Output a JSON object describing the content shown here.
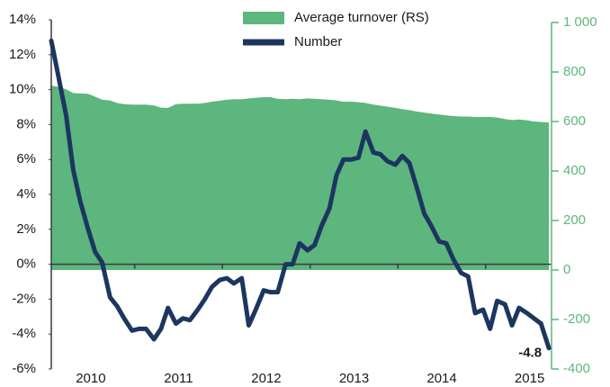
{
  "chart_data": {
    "type": "line-area",
    "x": [
      2010.05,
      2010.13,
      2010.22,
      2010.3,
      2010.38,
      2010.47,
      2010.55,
      2010.63,
      2010.72,
      2010.8,
      2010.88,
      2010.97,
      2011.05,
      2011.13,
      2011.22,
      2011.3,
      2011.38,
      2011.47,
      2011.55,
      2011.63,
      2011.72,
      2011.8,
      2011.88,
      2011.97,
      2012.05,
      2012.13,
      2012.22,
      2012.3,
      2012.38,
      2012.47,
      2012.55,
      2012.63,
      2012.72,
      2012.8,
      2012.88,
      2012.97,
      2013.05,
      2013.13,
      2013.22,
      2013.3,
      2013.38,
      2013.47,
      2013.55,
      2013.63,
      2013.72,
      2013.8,
      2013.88,
      2013.97,
      2014.05,
      2014.13,
      2014.22,
      2014.3,
      2014.38,
      2014.47,
      2014.55,
      2014.63,
      2014.72,
      2014.8,
      2014.88,
      2014.97,
      2015.05,
      2015.13,
      2015.22,
      2015.3,
      2015.38,
      2015.47,
      2015.55,
      2015.63,
      2015.72
    ],
    "xlim": [
      2010.05,
      2015.75
    ],
    "xticks": [
      {
        "value": 2010.5,
        "label": "2010"
      },
      {
        "value": 2011.5,
        "label": "2011"
      },
      {
        "value": 2012.5,
        "label": "2012"
      },
      {
        "value": 2013.5,
        "label": "2013"
      },
      {
        "value": 2014.5,
        "label": "2014"
      },
      {
        "value": 2015.5,
        "label": "2015"
      }
    ],
    "ylim": [
      -6,
      14
    ],
    "yticks": [
      {
        "value": -6,
        "label": "-6%"
      },
      {
        "value": -4,
        "label": "-4%"
      },
      {
        "value": -2,
        "label": "-2%"
      },
      {
        "value": 0,
        "label": "0%"
      },
      {
        "value": 2,
        "label": "2%"
      },
      {
        "value": 4,
        "label": "4%"
      },
      {
        "value": 6,
        "label": "6%"
      },
      {
        "value": 8,
        "label": "8%"
      },
      {
        "value": 10,
        "label": "10%"
      },
      {
        "value": 12,
        "label": "12%"
      },
      {
        "value": 14,
        "label": "14%"
      }
    ],
    "y2lim": [
      -400,
      1000
    ],
    "y2ticks": [
      -400,
      -200,
      0,
      200,
      400,
      600,
      800,
      {
        "value": 1000,
        "label": "1 000"
      }
    ],
    "legend": "top",
    "series": [
      {
        "name": "Average turnover (RS)",
        "color": "#5db67d",
        "axis": "y2",
        "kind": "area",
        "values": [
          745,
          740,
          730,
          715,
          713,
          712,
          700,
          688,
          685,
          675,
          670,
          668,
          668,
          668,
          665,
          656,
          655,
          670,
          672,
          672,
          672,
          675,
          680,
          684,
          688,
          690,
          690,
          693,
          696,
          698,
          698,
          692,
          690,
          692,
          690,
          693,
          692,
          690,
          688,
          685,
          680,
          680,
          678,
          675,
          668,
          664,
          660,
          655,
          650,
          646,
          640,
          636,
          632,
          628,
          625,
          622,
          620,
          620,
          618,
          618,
          618,
          616,
          610,
          606,
          608,
          605,
          600,
          598,
          596
        ]
      },
      {
        "name": "Number",
        "color": "#1c3660",
        "axis": "y",
        "kind": "line",
        "values": [
          12.8,
          10.8,
          8.5,
          5.4,
          3.6,
          2.0,
          0.7,
          0.1,
          -1.9,
          -2.4,
          -3.1,
          -3.8,
          -3.7,
          -3.7,
          -4.3,
          -3.7,
          -2.5,
          -3.4,
          -3.1,
          -3.2,
          -2.6,
          -2.0,
          -1.3,
          -0.9,
          -0.8,
          -1.1,
          -0.8,
          -3.5,
          -2.6,
          -1.5,
          -1.6,
          -1.6,
          0,
          0,
          1.2,
          0.8,
          1.1,
          2.2,
          3.2,
          5.1,
          6.0,
          6.0,
          6.1,
          7.6,
          6.4,
          6.3,
          5.9,
          5.7,
          6.2,
          5.8,
          4.3,
          2.9,
          2.2,
          1.3,
          1.2,
          0.3,
          -0.5,
          -0.7,
          -2.8,
          -2.6,
          -3.7,
          -2.1,
          -2.3,
          -3.5,
          -2.5,
          -2.8,
          -3.1,
          -3.4,
          -4.8
        ],
        "labeled_index": 68
      }
    ]
  }
}
